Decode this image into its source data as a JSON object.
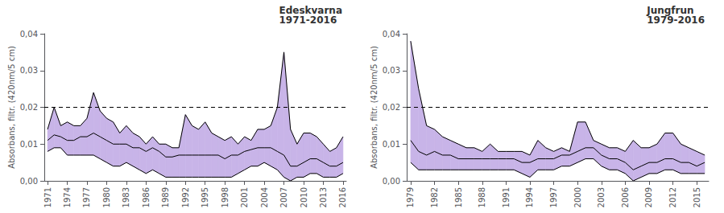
{
  "chart_data": [
    {
      "type": "line",
      "title": "Edeskvarna\n1971-2016",
      "ylabel": "Absorbans, filtr. (420nm/5 cm)",
      "x": [
        1971,
        1972,
        1973,
        1974,
        1975,
        1976,
        1977,
        1978,
        1979,
        1980,
        1981,
        1982,
        1983,
        1984,
        1985,
        1986,
        1987,
        1988,
        1989,
        1990,
        1991,
        1992,
        1993,
        1994,
        1995,
        1996,
        1997,
        1998,
        1999,
        2000,
        2001,
        2002,
        2003,
        2004,
        2005,
        2006,
        2007,
        2008,
        2009,
        2010,
        2011,
        2012,
        2013,
        2014,
        2015,
        2016
      ],
      "series": [
        {
          "color": "#000000",
          "values": [
            0.011,
            0.0125,
            0.012,
            0.011,
            0.011,
            0.012,
            0.012,
            0.013,
            0.012,
            0.011,
            0.01,
            0.01,
            0.01,
            0.009,
            0.009,
            0.008,
            0.009,
            0.008,
            0.0065,
            0.0065,
            0.007,
            0.007,
            0.007,
            0.007,
            0.007,
            0.007,
            0.007,
            0.006,
            0.007,
            0.007,
            0.008,
            0.0085,
            0.009,
            0.009,
            0.009,
            0.008,
            0.007,
            0.004,
            0.004,
            0.005,
            0.006,
            0.006,
            0.005,
            0.004,
            0.004,
            0.005
          ]
        },
        {
          "color": "#000000",
          "values": [
            0.014,
            0.02,
            0.015,
            0.016,
            0.015,
            0.015,
            0.017,
            0.024,
            0.019,
            0.017,
            0.016,
            0.013,
            0.015,
            0.013,
            0.012,
            0.01,
            0.012,
            0.01,
            0.01,
            0.009,
            0.009,
            0.018,
            0.015,
            0.014,
            0.016,
            0.013,
            0.012,
            0.011,
            0.012,
            0.01,
            0.012,
            0.011,
            0.014,
            0.014,
            0.015,
            0.02,
            0.035,
            0.014,
            0.01,
            0.013,
            0.013,
            0.012,
            0.01,
            0.008,
            0.009,
            0.012
          ]
        },
        {
          "color": "#000000",
          "values": [
            0.008,
            0.009,
            0.009,
            0.007,
            0.007,
            0.007,
            0.007,
            0.007,
            0.006,
            0.005,
            0.004,
            0.004,
            0.005,
            0.004,
            0.003,
            0.002,
            0.003,
            0.002,
            0.001,
            0.001,
            0.001,
            0.001,
            0.001,
            0.001,
            0.001,
            0.001,
            0.001,
            0.001,
            0.001,
            0.002,
            0.003,
            0.004,
            0.004,
            0.005,
            0.004,
            0.003,
            0.001,
            0.0,
            0.001,
            0.001,
            0.002,
            0.002,
            0.001,
            0.001,
            0.001,
            0.002
          ]
        }
      ],
      "band": {
        "color": "#c8b4e8",
        "lower": [
          0.008,
          0.009,
          0.009,
          0.007,
          0.007,
          0.007,
          0.007,
          0.007,
          0.006,
          0.005,
          0.004,
          0.004,
          0.005,
          0.004,
          0.003,
          0.002,
          0.003,
          0.002,
          0.001,
          0.001,
          0.001,
          0.001,
          0.001,
          0.001,
          0.001,
          0.001,
          0.001,
          0.001,
          0.001,
          0.002,
          0.003,
          0.004,
          0.004,
          0.005,
          0.004,
          0.003,
          0.001,
          0.0,
          0.001,
          0.001,
          0.002,
          0.002,
          0.001,
          0.001,
          0.001,
          0.002
        ],
        "upper": [
          0.014,
          0.02,
          0.015,
          0.016,
          0.015,
          0.015,
          0.017,
          0.024,
          0.019,
          0.017,
          0.016,
          0.013,
          0.015,
          0.013,
          0.012,
          0.01,
          0.012,
          0.01,
          0.01,
          0.009,
          0.009,
          0.018,
          0.015,
          0.014,
          0.016,
          0.013,
          0.012,
          0.011,
          0.012,
          0.01,
          0.012,
          0.011,
          0.014,
          0.014,
          0.015,
          0.02,
          0.035,
          0.014,
          0.01,
          0.013,
          0.013,
          0.012,
          0.01,
          0.008,
          0.009,
          0.012
        ]
      },
      "reference_line": {
        "y": 0.02,
        "color": "#000000",
        "line_style": "dashed"
      },
      "xlim": [
        1970.5,
        2016.5
      ],
      "xticks": [
        1971,
        1974,
        1977,
        1980,
        1983,
        1986,
        1989,
        1992,
        1995,
        1998,
        2001,
        2004,
        2007,
        2010,
        2013,
        2016
      ],
      "ylim": [
        0,
        0.04
      ],
      "yticks": [
        {
          "value": 0,
          "label": "0,00"
        },
        {
          "value": 0.01,
          "label": "0,01"
        },
        {
          "value": 0.02,
          "label": "0,02"
        },
        {
          "value": 0.03,
          "label": "0,03"
        },
        {
          "value": 0.04,
          "label": "0,04"
        }
      ],
      "grid": false
    },
    {
      "type": "line",
      "title": "Jungfrun\n1979-2016",
      "ylabel": "Absorbans, filtr. (420nm/5 cm)",
      "x": [
        1979,
        1980,
        1981,
        1982,
        1983,
        1984,
        1985,
        1986,
        1987,
        1988,
        1989,
        1990,
        1991,
        1992,
        1993,
        1994,
        1995,
        1996,
        1997,
        1998,
        1999,
        2000,
        2001,
        2002,
        2003,
        2004,
        2005,
        2006,
        2007,
        2008,
        2009,
        2010,
        2011,
        2012,
        2013,
        2014,
        2015,
        2016
      ],
      "series": [
        {
          "color": "#000000",
          "values": [
            0.011,
            0.008,
            0.007,
            0.008,
            0.007,
            0.007,
            0.006,
            0.006,
            0.006,
            0.006,
            0.006,
            0.006,
            0.006,
            0.006,
            0.005,
            0.005,
            0.006,
            0.006,
            0.006,
            0.007,
            0.007,
            0.008,
            0.009,
            0.009,
            0.007,
            0.006,
            0.006,
            0.005,
            0.003,
            0.004,
            0.005,
            0.005,
            0.006,
            0.006,
            0.005,
            0.005,
            0.004,
            0.005
          ]
        },
        {
          "color": "#000000",
          "values": [
            0.038,
            0.025,
            0.015,
            0.014,
            0.012,
            0.011,
            0.01,
            0.009,
            0.009,
            0.008,
            0.01,
            0.008,
            0.008,
            0.008,
            0.008,
            0.007,
            0.011,
            0.009,
            0.008,
            0.009,
            0.008,
            0.016,
            0.016,
            0.011,
            0.01,
            0.009,
            0.009,
            0.008,
            0.011,
            0.009,
            0.009,
            0.01,
            0.013,
            0.013,
            0.01,
            0.009,
            0.008,
            0.007
          ]
        },
        {
          "color": "#000000",
          "values": [
            0.005,
            0.003,
            0.003,
            0.003,
            0.003,
            0.003,
            0.003,
            0.003,
            0.003,
            0.003,
            0.003,
            0.003,
            0.003,
            0.003,
            0.002,
            0.001,
            0.003,
            0.003,
            0.003,
            0.004,
            0.004,
            0.005,
            0.006,
            0.006,
            0.004,
            0.003,
            0.003,
            0.002,
            0.0,
            0.001,
            0.002,
            0.002,
            0.003,
            0.003,
            0.002,
            0.002,
            0.002,
            0.002
          ]
        }
      ],
      "band": {
        "color": "#c8b4e8",
        "lower": [
          0.005,
          0.003,
          0.003,
          0.003,
          0.003,
          0.003,
          0.003,
          0.003,
          0.003,
          0.003,
          0.003,
          0.003,
          0.003,
          0.003,
          0.002,
          0.001,
          0.003,
          0.003,
          0.003,
          0.004,
          0.004,
          0.005,
          0.006,
          0.006,
          0.004,
          0.003,
          0.003,
          0.002,
          0.0,
          0.001,
          0.002,
          0.002,
          0.003,
          0.003,
          0.002,
          0.002,
          0.002,
          0.002
        ],
        "upper": [
          0.038,
          0.025,
          0.015,
          0.014,
          0.012,
          0.011,
          0.01,
          0.009,
          0.009,
          0.008,
          0.01,
          0.008,
          0.008,
          0.008,
          0.008,
          0.007,
          0.011,
          0.009,
          0.008,
          0.009,
          0.008,
          0.016,
          0.016,
          0.011,
          0.01,
          0.009,
          0.009,
          0.008,
          0.011,
          0.009,
          0.009,
          0.01,
          0.013,
          0.013,
          0.01,
          0.009,
          0.008,
          0.007
        ]
      },
      "reference_line": {
        "y": 0.02,
        "color": "#000000",
        "line_style": "dashed"
      },
      "xlim": [
        1978.5,
        2016.5
      ],
      "xticks": [
        1979,
        1982,
        1985,
        1988,
        1991,
        1994,
        1997,
        2000,
        2003,
        2006,
        2009,
        2012,
        2015
      ],
      "ylim": [
        0,
        0.04
      ],
      "yticks": [
        {
          "value": 0,
          "label": "0,00"
        },
        {
          "value": 0.01,
          "label": "0,01"
        },
        {
          "value": 0.02,
          "label": "0,02"
        },
        {
          "value": 0.03,
          "label": "0,03"
        },
        {
          "value": 0.04,
          "label": "0,04"
        }
      ],
      "grid": false
    }
  ]
}
